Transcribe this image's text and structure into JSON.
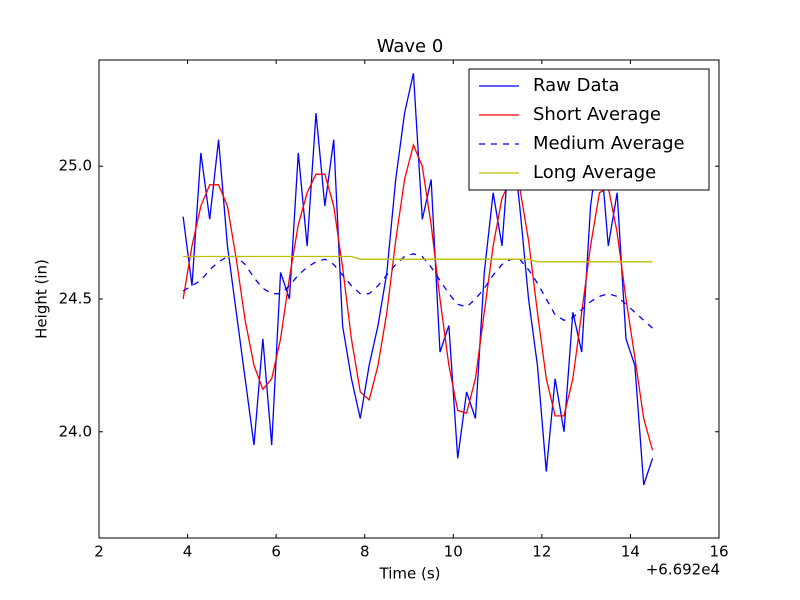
{
  "chart_data": {
    "type": "line",
    "title": "Wave 0",
    "xlabel": "Time (s)",
    "ylabel": "Height (in)",
    "x_offset_label": "+6.692e4",
    "x": [
      3.9,
      4.1,
      4.3,
      4.5,
      4.7,
      4.9,
      5.1,
      5.3,
      5.5,
      5.7,
      5.9,
      6.1,
      6.3,
      6.5,
      6.7,
      6.9,
      7.1,
      7.3,
      7.5,
      7.7,
      7.9,
      8.1,
      8.3,
      8.5,
      8.7,
      8.9,
      9.1,
      9.3,
      9.5,
      9.7,
      9.9,
      10.1,
      10.3,
      10.5,
      10.7,
      10.9,
      11.1,
      11.3,
      11.5,
      11.7,
      11.9,
      12.1,
      12.3,
      12.5,
      12.7,
      12.9,
      13.1,
      13.3,
      13.5,
      13.7,
      13.9,
      14.1,
      14.3,
      14.5
    ],
    "series": [
      {
        "name": "Raw Data",
        "color": "#0000ff",
        "linestyle": "solid",
        "values": [
          24.81,
          24.55,
          25.05,
          24.8,
          25.1,
          24.7,
          24.45,
          24.2,
          23.95,
          24.35,
          23.95,
          24.6,
          24.5,
          25.05,
          24.7,
          25.2,
          24.85,
          25.1,
          24.4,
          24.2,
          24.05,
          24.25,
          24.4,
          24.6,
          24.95,
          25.2,
          25.35,
          24.8,
          24.95,
          24.3,
          24.4,
          23.9,
          24.15,
          24.05,
          24.6,
          24.9,
          24.7,
          25.15,
          24.85,
          24.5,
          24.25,
          23.85,
          24.2,
          24.0,
          24.45,
          24.3,
          24.85,
          25.1,
          24.7,
          24.9,
          24.35,
          24.25,
          23.8,
          23.9
        ]
      },
      {
        "name": "Short Average",
        "color": "#ff0000",
        "linestyle": "solid",
        "values": [
          24.5,
          24.7,
          24.85,
          24.93,
          24.93,
          24.85,
          24.65,
          24.42,
          24.25,
          24.16,
          24.2,
          24.35,
          24.58,
          24.78,
          24.9,
          24.97,
          24.97,
          24.85,
          24.62,
          24.35,
          24.15,
          24.12,
          24.25,
          24.45,
          24.72,
          24.95,
          25.08,
          25.0,
          24.78,
          24.5,
          24.25,
          24.08,
          24.07,
          24.2,
          24.45,
          24.7,
          24.88,
          24.95,
          24.92,
          24.72,
          24.45,
          24.2,
          24.06,
          24.06,
          24.2,
          24.45,
          24.7,
          24.9,
          24.92,
          24.75,
          24.5,
          24.28,
          24.05,
          23.93
        ]
      },
      {
        "name": "Medium Average",
        "color": "#0000ff",
        "linestyle": "dashed",
        "values": [
          24.53,
          24.55,
          24.57,
          24.61,
          24.64,
          24.66,
          24.66,
          24.63,
          24.58,
          24.54,
          24.52,
          24.52,
          24.55,
          24.59,
          24.62,
          24.64,
          24.65,
          24.63,
          24.59,
          24.55,
          24.52,
          24.52,
          24.55,
          24.59,
          24.63,
          24.66,
          24.67,
          24.66,
          24.62,
          24.57,
          24.52,
          24.48,
          24.47,
          24.5,
          24.54,
          24.59,
          24.63,
          24.65,
          24.65,
          24.61,
          24.56,
          24.5,
          24.44,
          24.42,
          24.43,
          24.46,
          24.49,
          24.51,
          24.52,
          24.51,
          24.48,
          24.45,
          24.42,
          24.39
        ]
      },
      {
        "name": "Long Average",
        "color": "#bfbf00",
        "linestyle": "solid",
        "values": [
          24.66,
          24.66,
          24.66,
          24.66,
          24.66,
          24.66,
          24.66,
          24.66,
          24.66,
          24.66,
          24.66,
          24.66,
          24.66,
          24.66,
          24.66,
          24.66,
          24.66,
          24.66,
          24.66,
          24.66,
          24.65,
          24.65,
          24.65,
          24.65,
          24.65,
          24.65,
          24.65,
          24.65,
          24.65,
          24.65,
          24.65,
          24.65,
          24.65,
          24.65,
          24.65,
          24.65,
          24.65,
          24.65,
          24.65,
          24.65,
          24.64,
          24.64,
          24.64,
          24.64,
          24.64,
          24.64,
          24.64,
          24.64,
          24.64,
          24.64,
          24.64,
          24.64,
          24.64,
          24.64
        ]
      }
    ],
    "xlim": [
      2,
      16
    ],
    "xticks": [
      2,
      4,
      6,
      8,
      10,
      12,
      14,
      16
    ],
    "ylim": [
      23.6,
      25.4
    ],
    "yticks": [
      {
        "value": 24.0,
        "label": "24.0"
      },
      {
        "value": 24.5,
        "label": "24.5"
      },
      {
        "value": 25.0,
        "label": "25.0"
      }
    ],
    "grid": false,
    "legend": "upper right"
  }
}
